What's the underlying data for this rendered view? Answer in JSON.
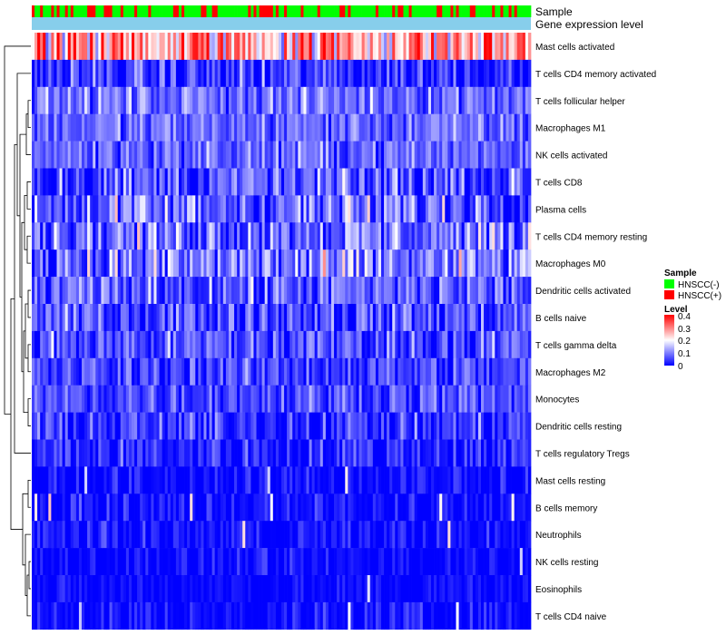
{
  "chart_data": {
    "type": "heatmap",
    "title": "",
    "annotation_tracks": [
      {
        "key": "sample",
        "label": "Sample"
      },
      {
        "key": "level",
        "label": "Gene expression level"
      }
    ],
    "rows": [
      {
        "name": "Mast cells activated",
        "mean": 0.27,
        "spread": 0.09
      },
      {
        "name": "T cells CD4 memory activated",
        "mean": 0.04,
        "spread": 0.05
      },
      {
        "name": "T cells follicular helper",
        "mean": 0.09,
        "spread": 0.04
      },
      {
        "name": "Macrophages M1",
        "mean": 0.08,
        "spread": 0.04
      },
      {
        "name": "NK cells activated",
        "mean": 0.08,
        "spread": 0.04
      },
      {
        "name": "T cells CD8",
        "mean": 0.06,
        "spread": 0.06
      },
      {
        "name": "Plasma cells",
        "mean": 0.08,
        "spread": 0.07
      },
      {
        "name": "T cells CD4 memory resting",
        "mean": 0.09,
        "spread": 0.06
      },
      {
        "name": "Macrophages M0",
        "mean": 0.09,
        "spread": 0.07
      },
      {
        "name": "Dendritic cells activated",
        "mean": 0.07,
        "spread": 0.05
      },
      {
        "name": "B cells naive",
        "mean": 0.06,
        "spread": 0.05
      },
      {
        "name": "T cells gamma delta",
        "mean": 0.06,
        "spread": 0.05
      },
      {
        "name": "Macrophages M2",
        "mean": 0.05,
        "spread": 0.04
      },
      {
        "name": "Monocytes",
        "mean": 0.06,
        "spread": 0.04
      },
      {
        "name": "Dendritic cells resting",
        "mean": 0.04,
        "spread": 0.04
      },
      {
        "name": "T cells regulatory  Tregs",
        "mean": 0.03,
        "spread": 0.04
      },
      {
        "name": "Mast cells resting",
        "mean": 0.005,
        "spread": 0.03
      },
      {
        "name": "B cells memory",
        "mean": 0.005,
        "spread": 0.03
      },
      {
        "name": "Neutrophils",
        "mean": 0.008,
        "spread": 0.03
      },
      {
        "name": "NK cells resting",
        "mean": 0.005,
        "spread": 0.025
      },
      {
        "name": "Eosinophils",
        "mean": 0.004,
        "spread": 0.02
      },
      {
        "name": "T cells CD4 naive",
        "mean": 0.006,
        "spread": 0.03
      }
    ],
    "n_samples": 180,
    "sample_group_share": {
      "HNSCC(-)": 0.72,
      "HNSCC(+)": 0.28
    },
    "legend": {
      "sample_title": "Sample",
      "sample_entries": [
        {
          "label": "HNSCC(-)",
          "color": "#00ff00"
        },
        {
          "label": "HNSCC(+)",
          "color": "#ff0000"
        }
      ],
      "level_title": "Level",
      "level_ticks": [
        "0.4",
        "0.3",
        "0.2",
        "0.1",
        "0"
      ],
      "level_range": [
        0,
        0.4
      ]
    },
    "colors": {
      "low": "#0000ff",
      "mid": "#ffffff",
      "high": "#ff0000",
      "sample_neg": "#00ff00",
      "sample_pos": "#ff0000",
      "level_track": "#87ceeb",
      "dendrogram": "#000000"
    }
  }
}
